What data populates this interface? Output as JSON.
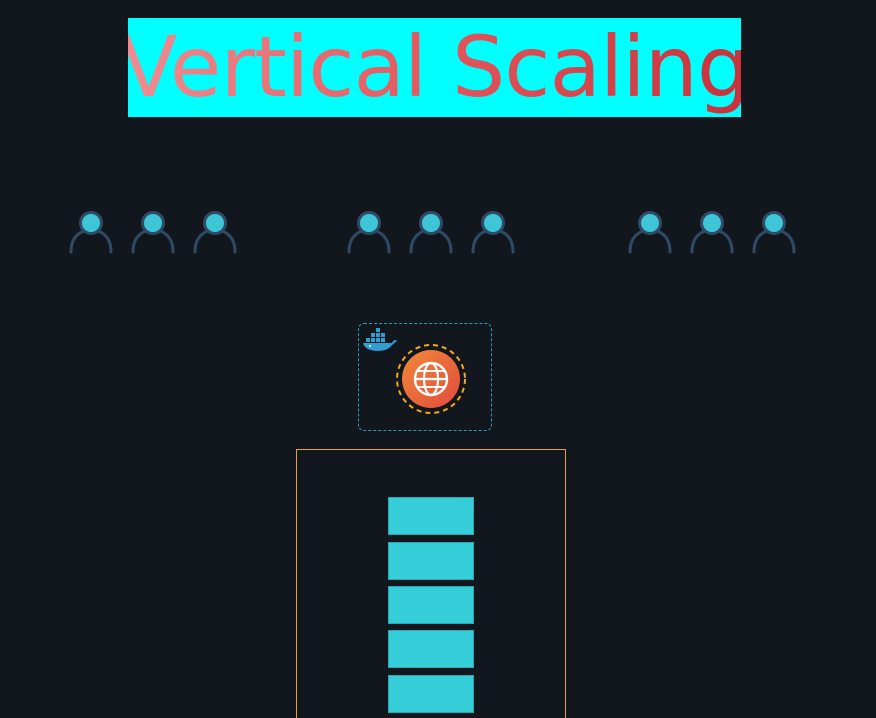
{
  "title": {
    "text": "Vertical Scaling",
    "background_color": "#00ffff",
    "text_gradient": [
      "#ee8e93",
      "#e4565c",
      "#c8323a"
    ]
  },
  "user_groups": [
    {
      "users": 3
    },
    {
      "users": 3
    },
    {
      "users": 3
    }
  ],
  "colors": {
    "background": "#12171e",
    "user_head": "#3ec6d6",
    "user_body": "#2f4a66",
    "container_border": "#2a9bb8",
    "docker": "#2f9fd1",
    "web_icon_fill": "#ec6a3a",
    "web_icon_ring": "#f5a81c",
    "server_border": "#e9a13a",
    "resource_block": "#36cfd9"
  },
  "icons": {
    "user": "user-icon",
    "docker": "docker-whale-icon",
    "web": "globe-icon"
  },
  "server": {
    "resource_blocks": 5
  }
}
